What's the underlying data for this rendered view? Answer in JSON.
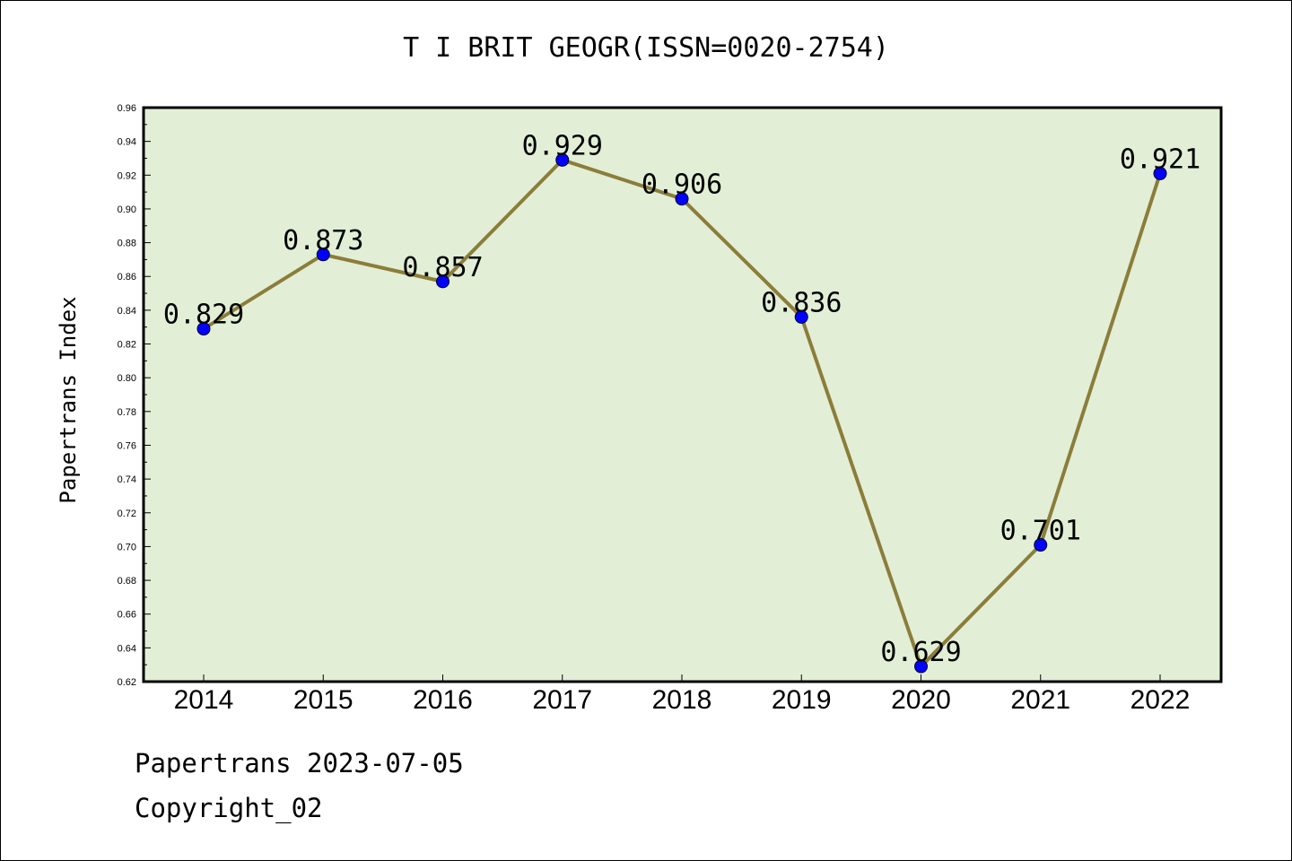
{
  "chart_data": {
    "type": "line",
    "title": "T I BRIT GEOGR(ISSN=0020-2754)",
    "xlabel": "",
    "ylabel": "Papertrans Index",
    "categories": [
      "2014",
      "2015",
      "2016",
      "2017",
      "2018",
      "2019",
      "2020",
      "2021",
      "2022"
    ],
    "series": [
      {
        "values": [
          0.829,
          0.873,
          0.857,
          0.929,
          0.906,
          0.836,
          0.629,
          0.701,
          0.921
        ],
        "data_labels": [
          "0.829",
          "0.873",
          "0.857",
          "0.929",
          "0.906",
          "0.836",
          "0.629",
          "0.701",
          "0.921"
        ],
        "line_color": "#8b7d3a",
        "marker_color": "#0000ff"
      }
    ],
    "ylim": [
      0.62,
      0.96
    ],
    "yticks": [
      "0.62",
      "0.64",
      "0.66",
      "0.68",
      "0.70",
      "0.72",
      "0.74",
      "0.76",
      "0.78",
      "0.80",
      "0.82",
      "0.84",
      "0.86",
      "0.88",
      "0.90",
      "0.92",
      "0.94",
      "0.96"
    ],
    "grid": false,
    "plot_background": "#e2efd6",
    "legend": "none"
  },
  "footer": {
    "line1": "Papertrans 2023-07-05",
    "line2": "Copyright_02"
  }
}
